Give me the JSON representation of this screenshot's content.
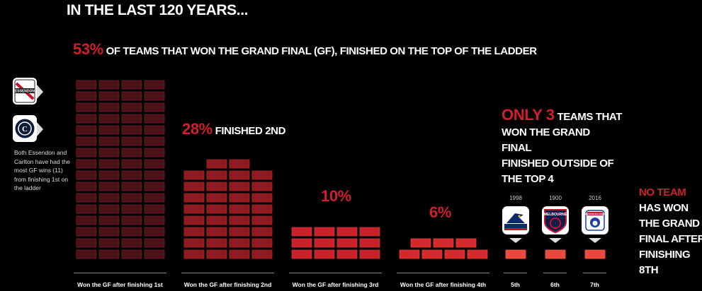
{
  "header": {
    "title": "IN THE LAST 120 YEARS..."
  },
  "headline": {
    "pct": "53%",
    "text": "OF TEAMS THAT WON THE GRAND FINAL (GF), FINISHED ON THE TOP OF THE LADDER"
  },
  "second": {
    "pct": "28%",
    "text": "FINISHED 2ND"
  },
  "third": {
    "pct": "10%"
  },
  "fourth": {
    "pct": "6%"
  },
  "outside": {
    "count": "ONLY 3",
    "line1": "TEAMS THAT",
    "line2": "WON THE GRAND FINAL",
    "line3": "FINISHED OUTSIDE OF",
    "line4": "THE TOP 4"
  },
  "no_team": {
    "line1": "NO TEAM",
    "line2": "HAS WON",
    "line3": "THE GRAND",
    "line4": "FINAL AFTER",
    "line5": "FINISHING 8TH"
  },
  "sidenote": "Both Essendon and Carlton have had the most GF wins (11) from finishing 1st on the ladder",
  "badges": [
    {
      "label": "ESSENDON",
      "icon": "essendon-logo"
    },
    {
      "label": "",
      "icon": "carlton-logo"
    }
  ],
  "outside_teams": [
    {
      "year": "1998",
      "position": "5th",
      "icon": "adelaide-crows-logo"
    },
    {
      "year": "1900",
      "position": "6th",
      "icon": "melbourne-logo",
      "text": "MELBOURNE"
    },
    {
      "year": "2016",
      "position": "7th",
      "icon": "western-bulldogs-logo",
      "text": "WESTERN BULLDOGS"
    }
  ],
  "colors": {
    "accent": "#d11e2a",
    "first": "#4a1216",
    "second": "#8e1a20",
    "third": "#c8212a",
    "fourth": "#d8282c",
    "outside": "#e8473a"
  },
  "chart_data": {
    "type": "bar",
    "categories": [
      "Won the GF after finishing 1st",
      "Won the GF after finishing 2nd",
      "Won the GF after finishing 3rd",
      "Won the GF after finishing 4th",
      "5th",
      "6th",
      "7th"
    ],
    "values": [
      53,
      28,
      10,
      6,
      1,
      1,
      1
    ],
    "value_labels": [
      "53%",
      "28%",
      "10%",
      "6%",
      "",
      "",
      ""
    ],
    "unit": "%",
    "title": "IN THE LAST 120 YEARS...",
    "grid": false,
    "legend": "none"
  }
}
